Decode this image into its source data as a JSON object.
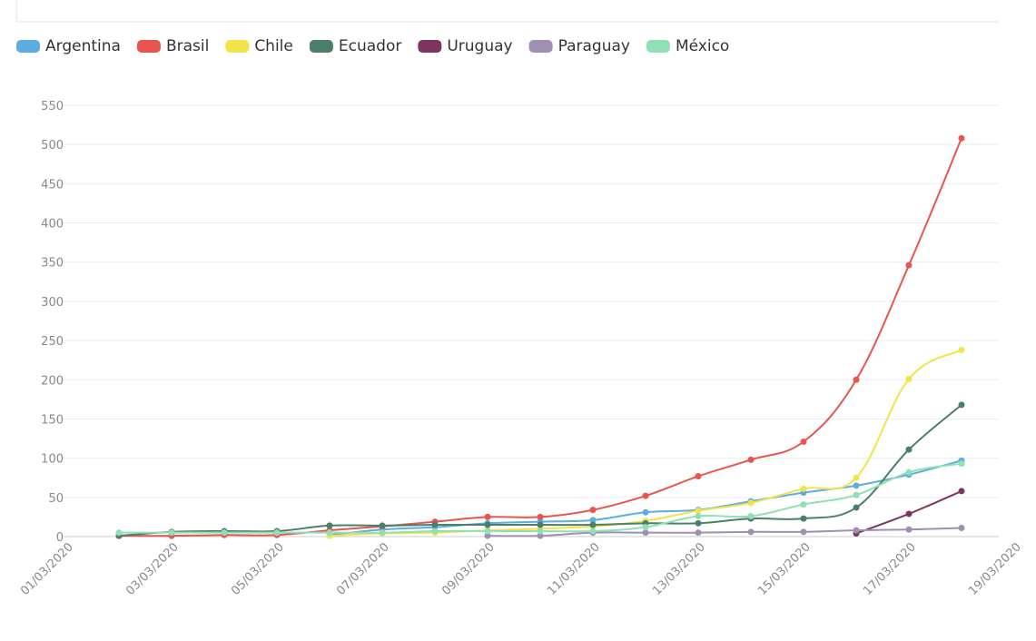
{
  "chart_data": {
    "type": "line",
    "categories": [
      "01/03/2020",
      null,
      "03/03/2020",
      null,
      "05/03/2020",
      null,
      "07/03/2020",
      null,
      "09/03/2020",
      null,
      "11/03/2020",
      null,
      "13/03/2020",
      null,
      "15/03/2020",
      null,
      "17/03/2020",
      null,
      "19/03/2020"
    ],
    "series": [
      {
        "name": "Argentina",
        "color": "#5dade2",
        "values": [
          null,
          null,
          null,
          null,
          null,
          2,
          9,
          12,
          17,
          19,
          21,
          31,
          34,
          45,
          56,
          65,
          79,
          97,
          null
        ]
      },
      {
        "name": "Brasil",
        "color": "#e8554e",
        "values": [
          null,
          1,
          1,
          2,
          2,
          8,
          13,
          19,
          25,
          25,
          34,
          52,
          77,
          98,
          121,
          200,
          346,
          508,
          null
        ]
      },
      {
        "name": "Chile",
        "color": "#f1e44a",
        "values": [
          null,
          null,
          null,
          null,
          null,
          1,
          4,
          5,
          8,
          10,
          13,
          20,
          33,
          43,
          61,
          75,
          201,
          238,
          null
        ]
      },
      {
        "name": "Ecuador",
        "color": "#4a7f6a",
        "values": [
          null,
          1,
          6,
          7,
          7,
          14,
          14,
          15,
          15,
          15,
          15,
          17,
          17,
          23,
          23,
          37,
          111,
          168,
          null
        ]
      },
      {
        "name": "Uruguay",
        "color": "#7b3560",
        "values": [
          null,
          null,
          null,
          null,
          null,
          null,
          null,
          null,
          null,
          null,
          null,
          null,
          null,
          null,
          null,
          4,
          29,
          58,
          null
        ]
      },
      {
        "name": "Paraguay",
        "color": "#a08fb0",
        "values": [
          null,
          null,
          null,
          null,
          null,
          null,
          null,
          null,
          1,
          1,
          5,
          5,
          5,
          6,
          6,
          8,
          9,
          11,
          null
        ]
      },
      {
        "name": "México",
        "color": "#8fe0b4",
        "values": [
          null,
          5,
          5,
          5,
          5,
          5,
          5,
          7,
          7,
          7,
          7,
          12,
          26,
          26,
          41,
          53,
          82,
          93,
          null
        ]
      }
    ],
    "ylim": [
      0,
      550
    ],
    "yticks": [
      0,
      50,
      100,
      150,
      200,
      250,
      300,
      350,
      400,
      450,
      500,
      550
    ],
    "grid": true
  }
}
